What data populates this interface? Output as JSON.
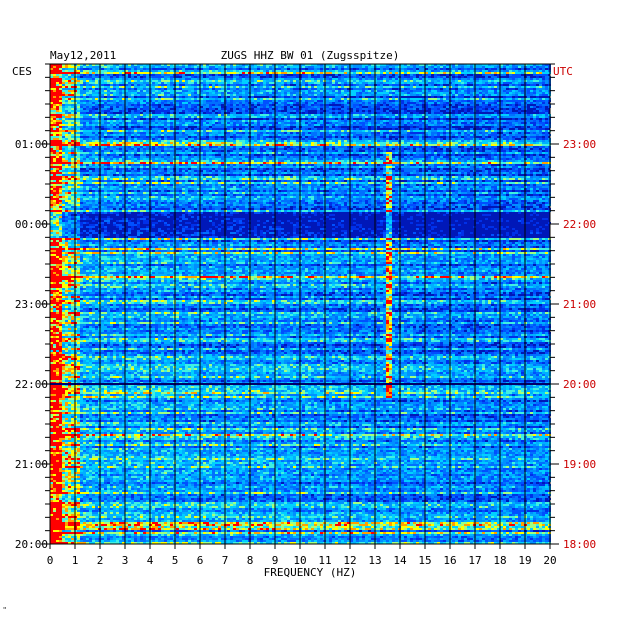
{
  "chart_data": {
    "type": "heatmap",
    "date": "May12,2011",
    "title": "ZUGS HHZ BW 01 (Zugsspitze)",
    "left_timezone": "CES",
    "right_timezone": "UTC",
    "xlabel": "FREQUENCY (HZ)",
    "xlim": [
      0,
      20
    ],
    "x_ticks": [
      "0",
      "1",
      "2",
      "3",
      "4",
      "5",
      "6",
      "7",
      "8",
      "9",
      "10",
      "11",
      "12",
      "13",
      "14",
      "15",
      "16",
      "17",
      "18",
      "19",
      "20"
    ],
    "left_ticks": [
      "01:00",
      "00:00",
      "23:00",
      "22:00",
      "21:00",
      "20:00"
    ],
    "right_ticks": [
      "23:00",
      "22:00",
      "21:00",
      "20:00",
      "19:00",
      "18:00"
    ],
    "notable_features": [
      {
        "type": "narrow band line",
        "frequency_hz": 13.5,
        "span_utc": [
          "19:50",
          "22:55"
        ]
      },
      {
        "type": "quiet band",
        "span_utc": [
          "21:50",
          "22:10"
        ]
      }
    ],
    "colors": {
      "low": "#0000a0",
      "mid": "#00c8ff",
      "high": "#ffff00",
      "max": "#ff0000"
    }
  },
  "footer_mark": "\""
}
